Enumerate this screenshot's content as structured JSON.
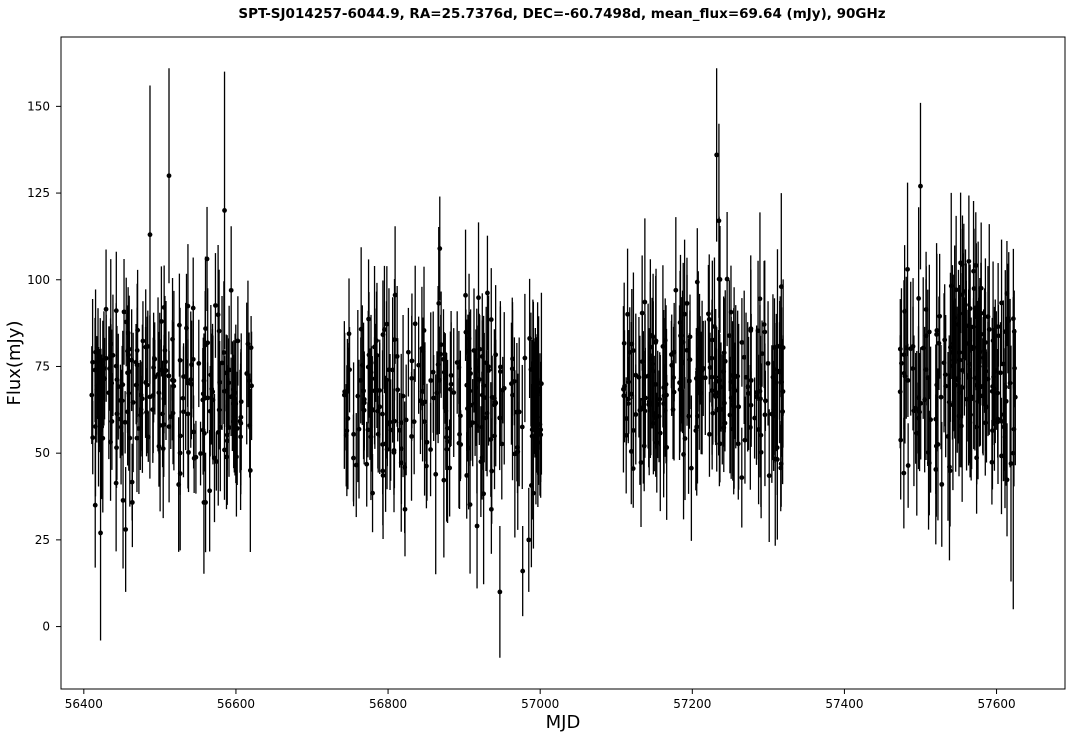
{
  "chart_data": {
    "type": "scatter",
    "title": "SPT-SJ014257-6044.9, RA=25.7376d, DEC=-60.7498d, mean_flux=69.64 (mJy), 90GHz",
    "xlabel": "MJD",
    "ylabel": "Flux(mJy)",
    "xlim": [
      56370,
      57690
    ],
    "ylim": [
      -18,
      170
    ],
    "xticks": [
      56400,
      56600,
      56800,
      57000,
      57200,
      57400,
      57600
    ],
    "yticks": [
      0,
      25,
      50,
      75,
      100,
      125,
      150
    ],
    "error_bars": true,
    "marker": "filled-circle",
    "grid": false,
    "legend": "none",
    "colors": {
      "points": "#000000",
      "axes": "#000000",
      "background": "#ffffff"
    },
    "series": [
      {
        "observing_seasons": [
          {
            "x_start": 56410,
            "x_end": 56622,
            "y_mean": 67,
            "y_spread": 13,
            "error_spread": 16,
            "count": 200
          },
          {
            "x_start": 56742,
            "x_end": 57002,
            "y_mean": 65,
            "y_spread": 13,
            "error_spread": 17,
            "count": 210
          },
          {
            "x_start": 57108,
            "x_end": 57320,
            "y_mean": 69,
            "y_spread": 13,
            "error_spread": 17,
            "count": 200
          },
          {
            "x_start": 57472,
            "x_end": 57625,
            "y_mean": 72,
            "y_spread": 14,
            "error_spread": 18,
            "count": 160
          }
        ],
        "highlighted_points": [
          {
            "x": 56422,
            "y": 27,
            "err": 31
          },
          {
            "x": 56487,
            "y": 113,
            "err": 43
          },
          {
            "x": 56512,
            "y": 130,
            "err": 31
          },
          {
            "x": 56585,
            "y": 120,
            "err": 40
          },
          {
            "x": 56562,
            "y": 106,
            "err": 15
          },
          {
            "x": 56415,
            "y": 35,
            "err": 18
          },
          {
            "x": 56455,
            "y": 28,
            "err": 18
          },
          {
            "x": 56868,
            "y": 109,
            "err": 15
          },
          {
            "x": 56947,
            "y": 10,
            "err": 19
          },
          {
            "x": 56985,
            "y": 25,
            "err": 15
          },
          {
            "x": 56977,
            "y": 16,
            "err": 13
          },
          {
            "x": 56917,
            "y": 29,
            "err": 18
          },
          {
            "x": 57232,
            "y": 136,
            "err": 25
          },
          {
            "x": 57235,
            "y": 117,
            "err": 28
          },
          {
            "x": 57317,
            "y": 98,
            "err": 27
          },
          {
            "x": 57500,
            "y": 127,
            "err": 24
          },
          {
            "x": 57483,
            "y": 103,
            "err": 25
          },
          {
            "x": 57619,
            "y": 47,
            "err": 34
          },
          {
            "x": 57622,
            "y": 50,
            "err": 45
          },
          {
            "x": 57528,
            "y": 41,
            "err": 18
          }
        ]
      }
    ]
  }
}
